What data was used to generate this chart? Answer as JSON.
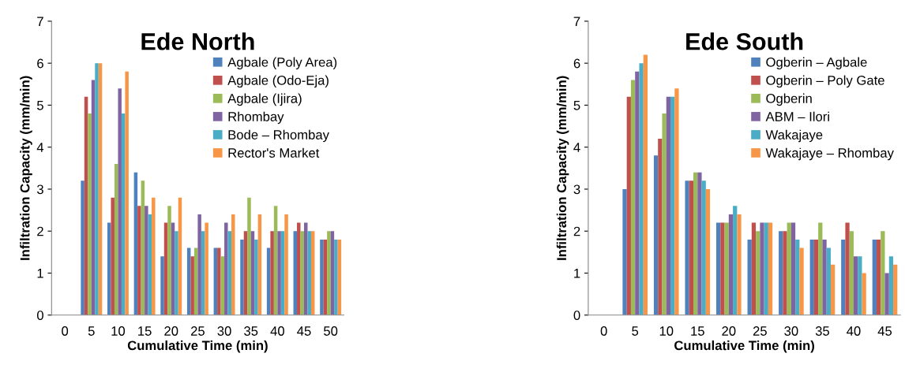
{
  "chart_data": [
    {
      "type": "bar",
      "title": "Ede North",
      "xlabel": "Cumulative Time (min)",
      "ylabel": "Infiltration Capacity (mm/min)",
      "categories": [
        "0",
        "5",
        "10",
        "15",
        "20",
        "25",
        "30",
        "35",
        "40",
        "45",
        "50"
      ],
      "ylim": [
        0,
        7
      ],
      "yticks": [
        0,
        1,
        2,
        3,
        4,
        5,
        6,
        7
      ],
      "grid": false,
      "legend": "top right",
      "series": [
        {
          "name": "Agbale (Poly Area)",
          "color": "#4f81bd",
          "values": [
            null,
            3.2,
            2.2,
            3.4,
            1.4,
            1.6,
            1.6,
            1.8,
            1.6,
            2.0,
            1.8
          ]
        },
        {
          "name": "Agbale (Odo-Eja)",
          "color": "#c0504d",
          "values": [
            null,
            5.2,
            2.8,
            2.6,
            2.2,
            1.4,
            1.6,
            2.0,
            2.0,
            2.2,
            1.8
          ]
        },
        {
          "name": "Agbale (Ijira)",
          "color": "#9bbb59",
          "values": [
            null,
            4.8,
            3.6,
            3.2,
            2.6,
            1.6,
            1.4,
            2.8,
            2.6,
            2.0,
            2.0
          ]
        },
        {
          "name": "Rhombay",
          "color": "#8064a2",
          "values": [
            null,
            5.6,
            5.4,
            2.6,
            2.2,
            2.4,
            2.2,
            2.0,
            2.0,
            2.2,
            2.0
          ]
        },
        {
          "name": "Bode – Rhombay",
          "color": "#4bacc6",
          "values": [
            null,
            6.0,
            4.8,
            2.4,
            2.0,
            2.0,
            2.0,
            1.8,
            2.0,
            2.0,
            1.8
          ]
        },
        {
          "name": "Rector's Market",
          "color": "#f79646",
          "values": [
            null,
            6.0,
            5.8,
            2.8,
            2.8,
            2.2,
            2.4,
            2.4,
            2.4,
            2.0,
            1.8
          ]
        }
      ]
    },
    {
      "type": "bar",
      "title": "Ede South",
      "xlabel": "Cumulative Time (min)",
      "ylabel": "Infiltration Capacity (mm/min)",
      "categories": [
        "0",
        "5",
        "10",
        "15",
        "20",
        "25",
        "30",
        "35",
        "40",
        "45"
      ],
      "ylim": [
        0,
        7
      ],
      "yticks": [
        0,
        1,
        2,
        3,
        4,
        5,
        6,
        7
      ],
      "grid": false,
      "legend": "top right",
      "series": [
        {
          "name": "Ogberin – Agbale",
          "color": "#4f81bd",
          "values": [
            null,
            3.0,
            3.8,
            3.2,
            2.2,
            1.8,
            2.0,
            1.8,
            1.8,
            1.8
          ]
        },
        {
          "name": "Ogberin – Poly Gate",
          "color": "#c0504d",
          "values": [
            null,
            5.2,
            4.2,
            3.2,
            2.2,
            2.2,
            2.0,
            1.8,
            2.2,
            1.8
          ]
        },
        {
          "name": "Ogberin",
          "color": "#9bbb59",
          "values": [
            null,
            5.6,
            4.8,
            3.4,
            2.2,
            2.0,
            2.2,
            2.2,
            2.0,
            2.0
          ]
        },
        {
          "name": "ABM – Ilori",
          "color": "#8064a2",
          "values": [
            null,
            5.8,
            5.2,
            3.4,
            2.4,
            2.2,
            2.2,
            1.8,
            1.4,
            1.0
          ]
        },
        {
          "name": "Wakajaye",
          "color": "#4bacc6",
          "values": [
            null,
            6.0,
            5.2,
            3.2,
            2.6,
            2.2,
            1.8,
            1.6,
            1.4,
            1.4
          ]
        },
        {
          "name": "Wakajaye – Rhombay",
          "color": "#f79646",
          "values": [
            null,
            6.2,
            5.4,
            3.0,
            2.4,
            2.2,
            1.6,
            1.2,
            1.0,
            1.2
          ]
        }
      ]
    }
  ]
}
